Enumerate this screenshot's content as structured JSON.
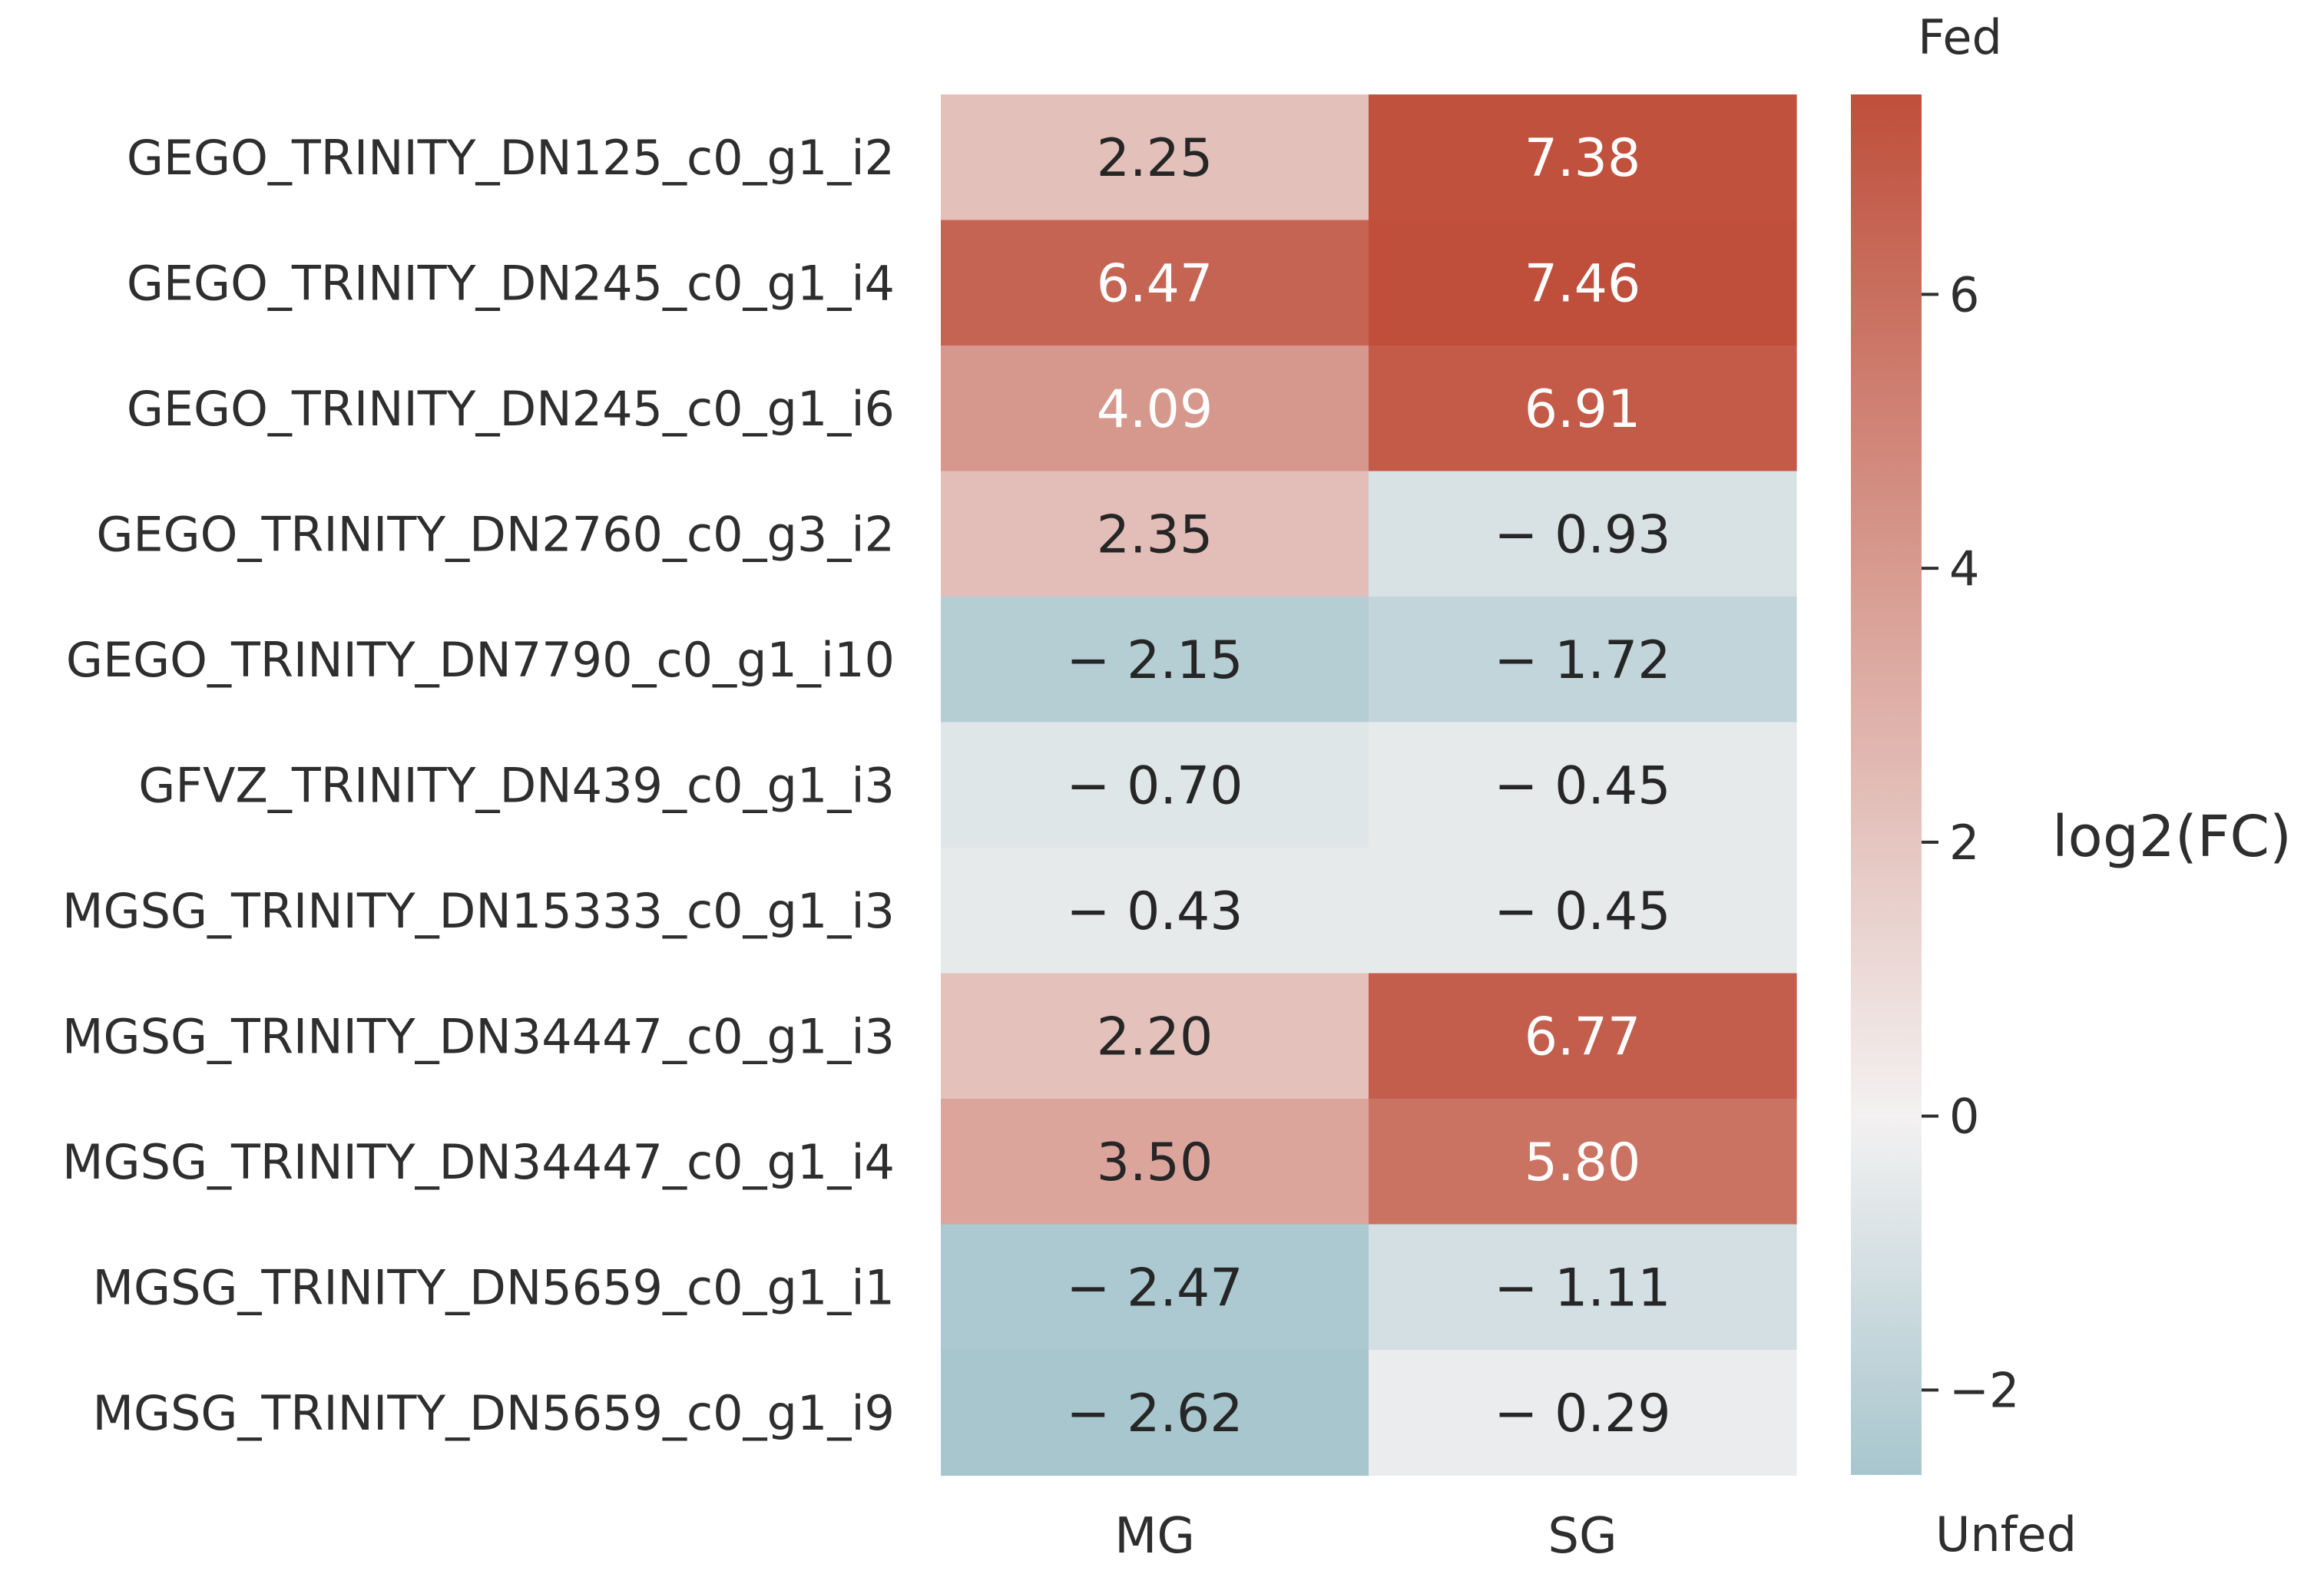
{
  "chart_data": {
    "type": "heatmap",
    "title": "",
    "xlabel": "",
    "ylabel": "",
    "x_categories": [
      "MG",
      "SG"
    ],
    "y_categories": [
      "GEGO_TRINITY_DN125_c0_g1_i2",
      "GEGO_TRINITY_DN245_c0_g1_i4",
      "GEGO_TRINITY_DN245_c0_g1_i6",
      "GEGO_TRINITY_DN2760_c0_g3_i2",
      "GEGO_TRINITY_DN7790_c0_g1_i10",
      "GFVZ_TRINITY_DN439_c0_g1_i3",
      "MGSG_TRINITY_DN15333_c0_g1_i3",
      "MGSG_TRINITY_DN34447_c0_g1_i3",
      "MGSG_TRINITY_DN34447_c0_g1_i4",
      "MGSG_TRINITY_DN5659_c0_g1_i1",
      "MGSG_TRINITY_DN5659_c0_g1_i9"
    ],
    "values": [
      [
        2.25,
        7.38
      ],
      [
        6.47,
        7.46
      ],
      [
        4.09,
        6.91
      ],
      [
        2.35,
        -0.93
      ],
      [
        -2.15,
        -1.72
      ],
      [
        -0.7,
        -0.45
      ],
      [
        -0.43,
        -0.45
      ],
      [
        2.2,
        6.77
      ],
      [
        3.5,
        5.8
      ],
      [
        -2.47,
        -1.11
      ],
      [
        -2.62,
        -0.29
      ]
    ],
    "value_labels": [
      [
        "2.25",
        "7.38"
      ],
      [
        "6.47",
        "7.46"
      ],
      [
        "4.09",
        "6.91"
      ],
      [
        "2.35",
        "− 0.93"
      ],
      [
        "− 2.15",
        "− 1.72"
      ],
      [
        "− 0.70",
        "− 0.45"
      ],
      [
        "− 0.43",
        "− 0.45"
      ],
      [
        "2.20",
        "6.77"
      ],
      [
        "3.50",
        "5.80"
      ],
      [
        "− 2.47",
        "− 1.11"
      ],
      [
        "− 2.62",
        "− 0.29"
      ]
    ],
    "colorbar": {
      "label": "log2(FC)",
      "top_label": "Fed",
      "bottom_label": "Unfed",
      "range": [
        -2.62,
        7.46
      ],
      "ticks": [
        6,
        4,
        2,
        0,
        -2
      ],
      "tick_labels": [
        "6",
        "4",
        "2",
        "0",
        "−2"
      ],
      "cmap": "diverging",
      "low_color": "#a8c6ce",
      "mid_color": "#f3f1f1",
      "high_color": "#bf4f3b"
    },
    "grid": false,
    "legend": "colorbar-right"
  }
}
